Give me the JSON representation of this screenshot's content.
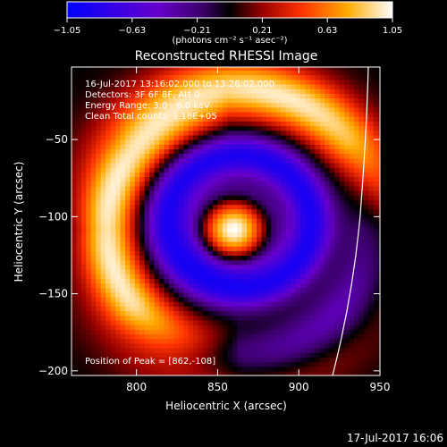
{
  "chart_data": {
    "type": "heatmap",
    "title": "Reconstructed RHESSI Image",
    "xlabel": "Heliocentric X (arcsec)",
    "ylabel": "Heliocentric Y (arcsec)",
    "xlim": [
      760,
      950
    ],
    "ylim": [
      -203,
      -3
    ],
    "x_ticks": [
      800,
      850,
      900,
      950
    ],
    "y_ticks": [
      -50,
      -100,
      -150,
      -200
    ],
    "x_tick_labels": [
      "800",
      "850",
      "900",
      "950"
    ],
    "y_tick_labels": [
      "−50",
      "−100",
      "−150",
      "−200"
    ],
    "colorbar": {
      "range": [
        -1.05,
        1.05
      ],
      "ticks": [
        -1.05,
        -0.63,
        -0.21,
        0.21,
        0.63,
        1.05
      ],
      "tick_labels": [
        "−1.05",
        "−0.63",
        "−0.21",
        "0.21",
        "0.63",
        "1.05"
      ],
      "units_label": "(photons cm⁻² s⁻¹ asec⁻²)",
      "colormap": [
        "#0000ff",
        "#6600cc",
        "#3a0066",
        "#000000",
        "#990000",
        "#ff3300",
        "#ffaa00",
        "#ffffff"
      ]
    },
    "annotations": [
      "16-Jul-2017 13:16:02.000 to 13:26:02.000",
      "Detectors: 3F 6F 8F, Att 0",
      "Energy Range: 3.0 - 6.0 keV",
      "Clean     Total counts: 1.18E+05"
    ],
    "peak_label": "Position of Peak = [862,-108]",
    "peak_position": [
      862,
      -108
    ],
    "features": {
      "central_source": {
        "x": 860,
        "y": -108,
        "value": 1.05
      },
      "blue_ring": {
        "x": 860,
        "y": -108,
        "value": -0.9
      },
      "outer_arc": {
        "x": 860,
        "y": -108,
        "value": 0.95
      }
    }
  },
  "footer": {
    "timestamp": "17-Jul-2017 16:06"
  }
}
